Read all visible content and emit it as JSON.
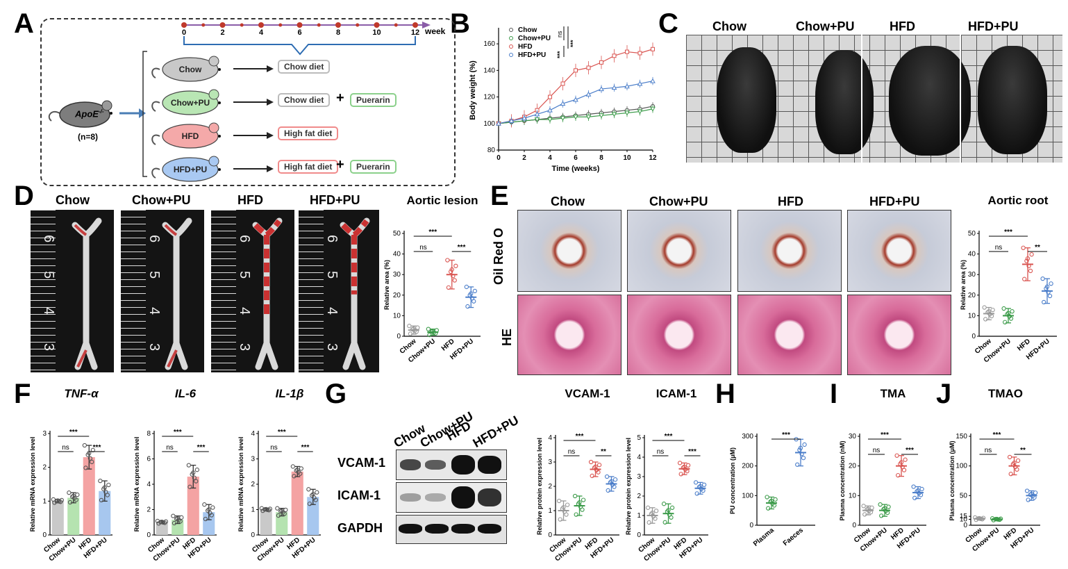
{
  "panels": {
    "A": "A",
    "B": "B",
    "C": "C",
    "D": "D",
    "E": "E",
    "F": "F",
    "G": "G",
    "H": "H",
    "I": "I",
    "J": "J"
  },
  "panel_a": {
    "timeline": {
      "ticks": [
        "0",
        "2",
        "4",
        "6",
        "8",
        "10",
        "12"
      ],
      "unit": "week"
    },
    "source": {
      "label": "ApoE",
      "superscript": "-/-",
      "n": "(n=8)"
    },
    "groups": [
      {
        "name": "Chow",
        "diet": "Chow diet",
        "extra": "",
        "color": "#c8c8c8"
      },
      {
        "name": "Chow+PU",
        "diet": "Chow diet",
        "extra": "Puerarin",
        "color": "#b9e6b4"
      },
      {
        "name": "HFD",
        "diet": "High fat diet",
        "extra": "",
        "color": "#f4a9a9"
      },
      {
        "name": "HFD+PU",
        "diet": "High fat diet",
        "extra": "Puerarin",
        "color": "#a9c9f2"
      }
    ],
    "plus": "+"
  },
  "panel_c": {
    "labels": [
      "Chow",
      "Chow+PU",
      "HFD",
      "HFD+PU"
    ]
  },
  "panel_d": {
    "labels": [
      "Chow",
      "Chow+PU",
      "HFD",
      "HFD+PU"
    ],
    "ruler": [
      "6",
      "5",
      "4",
      "3"
    ]
  },
  "panel_e": {
    "labels": [
      "Chow",
      "Chow+PU",
      "HFD",
      "HFD+PU"
    ],
    "rows": [
      "Oil Red O",
      "HE"
    ]
  },
  "panel_g": {
    "columns": [
      "Chow",
      "Chow+PU",
      "HFD",
      "HFD+PU"
    ],
    "rows": [
      "VCAM-1",
      "ICAM-1",
      "GAPDH"
    ]
  },
  "chart_data": [
    {
      "id": "B",
      "type": "line",
      "title": "",
      "xlabel": "Time (weeks)",
      "ylabel": "Body weight (%)",
      "x": [
        0,
        1,
        2,
        3,
        4,
        5,
        6,
        7,
        8,
        9,
        10,
        11,
        12
      ],
      "xticks": [
        "0",
        "2",
        "4",
        "6",
        "8",
        "10",
        "12"
      ],
      "xlim": [
        0,
        12
      ],
      "ylim": [
        80,
        170
      ],
      "yticks": [
        "80",
        "100",
        "120",
        "140",
        "160"
      ],
      "series": [
        {
          "name": "Chow",
          "marker": "circle",
          "color": "#555555",
          "values": [
            100,
            101,
            102,
            103,
            104,
            105,
            106,
            107,
            108,
            109,
            110,
            111,
            113
          ]
        },
        {
          "name": "Chow+PU",
          "marker": "down",
          "color": "#3a9a48",
          "values": [
            100,
            101,
            102,
            103,
            103,
            104,
            105,
            105,
            106,
            107,
            108,
            109,
            111
          ]
        },
        {
          "name": "HFD",
          "marker": "square",
          "color": "#d9534f",
          "values": [
            100,
            102,
            105,
            110,
            120,
            130,
            140,
            142,
            146,
            151,
            154,
            153,
            156
          ]
        },
        {
          "name": "HFD+PU",
          "marker": "up",
          "color": "#4a7dc9",
          "values": [
            100,
            102,
            104,
            107,
            110,
            115,
            118,
            122,
            126,
            127,
            128,
            130,
            132
          ]
        }
      ],
      "legend": [
        "Chow",
        "Chow+PU",
        "HFD",
        "HFD+PU"
      ],
      "sig": [
        "ns",
        "***",
        "***"
      ]
    },
    {
      "id": "D",
      "type": "scatter",
      "title": "Aortic lesion",
      "ylabel": "Relative area (%)",
      "categories": [
        "Chow",
        "Chow+PU",
        "HFD",
        "HFD+PU"
      ],
      "ylim": [
        0,
        50
      ],
      "yticks": [
        "0",
        "10",
        "20",
        "30",
        "40",
        "50"
      ],
      "means": [
        3,
        2,
        30,
        19
      ],
      "sd": [
        2,
        1.5,
        7,
        5
      ],
      "colors": [
        "#999999",
        "#3a9a48",
        "#d9534f",
        "#4a7dc9"
      ],
      "sig": [
        "***",
        "ns",
        "***"
      ]
    },
    {
      "id": "E",
      "type": "scatter",
      "title": "Aortic root",
      "ylabel": "Relative area (%)",
      "categories": [
        "Chow",
        "Chow+PU",
        "HFD",
        "HFD+PU"
      ],
      "ylim": [
        0,
        50
      ],
      "yticks": [
        "0",
        "10",
        "20",
        "30",
        "40",
        "50"
      ],
      "means": [
        11,
        10,
        35,
        22
      ],
      "sd": [
        3,
        3.5,
        8,
        6
      ],
      "colors": [
        "#999999",
        "#3a9a48",
        "#d9534f",
        "#4a7dc9"
      ],
      "sig": [
        "***",
        "ns",
        "**"
      ]
    },
    {
      "id": "F1",
      "type": "bar",
      "title": "TNF-α",
      "ylabel": "Relative mRNA expression level",
      "categories": [
        "Chow",
        "Chow+PU",
        "HFD",
        "HFD+PU"
      ],
      "ylim": [
        0,
        3
      ],
      "yticks": [
        "0",
        "1",
        "2",
        "3"
      ],
      "values": [
        1.0,
        1.1,
        2.3,
        1.3
      ],
      "sd": [
        0.05,
        0.15,
        0.35,
        0.3
      ],
      "colors": [
        "#c9c9c9",
        "#b5e3b0",
        "#f4a3a3",
        "#a7c7ef"
      ],
      "sig": [
        "***",
        "ns",
        "***"
      ]
    },
    {
      "id": "F2",
      "type": "bar",
      "title": "IL-6",
      "ylabel": "Relative mRNA expression level",
      "categories": [
        "Chow",
        "Chow+PU",
        "HFD",
        "HFD+PU"
      ],
      "ylim": [
        0,
        8
      ],
      "yticks": [
        "0",
        "2",
        "4",
        "6",
        "8"
      ],
      "values": [
        1.0,
        1.2,
        4.6,
        1.8
      ],
      "sd": [
        0.1,
        0.3,
        0.9,
        0.6
      ],
      "colors": [
        "#c9c9c9",
        "#b5e3b0",
        "#f4a3a3",
        "#a7c7ef"
      ],
      "sig": [
        "***",
        "ns",
        "***"
      ]
    },
    {
      "id": "F3",
      "type": "bar",
      "title": "IL-1β",
      "ylabel": "Relative mRNA expression level",
      "categories": [
        "Chow",
        "Chow+PU",
        "HFD",
        "HFD+PU"
      ],
      "ylim": [
        0,
        4
      ],
      "yticks": [
        "0",
        "1",
        "2",
        "3",
        "4"
      ],
      "values": [
        1.0,
        0.9,
        2.5,
        1.5
      ],
      "sd": [
        0.05,
        0.15,
        0.2,
        0.3
      ],
      "colors": [
        "#c9c9c9",
        "#b5e3b0",
        "#f4a3a3",
        "#a7c7ef"
      ],
      "sig": [
        "***",
        "ns",
        "***"
      ]
    },
    {
      "id": "G1",
      "type": "scatter",
      "title": "VCAM-1",
      "ylabel": "Relative protein expression level",
      "categories": [
        "Chow",
        "Chow+PU",
        "HFD",
        "HFD+PU"
      ],
      "ylim": [
        0,
        4
      ],
      "yticks": [
        "0",
        "1",
        "2",
        "3",
        "4"
      ],
      "means": [
        1.0,
        1.2,
        2.7,
        2.1
      ],
      "sd": [
        0.4,
        0.4,
        0.3,
        0.3
      ],
      "colors": [
        "#999999",
        "#3a9a48",
        "#d9534f",
        "#4a7dc9"
      ],
      "sig": [
        "***",
        "ns",
        "**"
      ]
    },
    {
      "id": "G2",
      "type": "scatter",
      "title": "ICAM-1",
      "ylabel": "Relative protein expression level",
      "categories": [
        "Chow",
        "Chow+PU",
        "HFD",
        "HFD+PU"
      ],
      "ylim": [
        0,
        5
      ],
      "yticks": [
        "0",
        "1",
        "2",
        "3",
        "4",
        "5"
      ],
      "means": [
        1.0,
        1.1,
        3.4,
        2.4
      ],
      "sd": [
        0.4,
        0.5,
        0.3,
        0.3
      ],
      "colors": [
        "#999999",
        "#3a9a48",
        "#d9534f",
        "#4a7dc9"
      ],
      "sig": [
        "***",
        "ns",
        "***"
      ]
    },
    {
      "id": "H",
      "type": "scatter",
      "title": "",
      "ylabel": "PU concentration (μM)",
      "categories": [
        "Plasma",
        "Faeces"
      ],
      "ylim": [
        0,
        300
      ],
      "yticks": [
        "0",
        "100",
        "200",
        "300"
      ],
      "means": [
        75,
        245
      ],
      "sd": [
        20,
        45
      ],
      "colors": [
        "#3a9a48",
        "#4a7dc9"
      ],
      "sig": [
        "***"
      ]
    },
    {
      "id": "I",
      "type": "scatter",
      "title": "TMA",
      "ylabel": "Plasma concentration (nM)",
      "categories": [
        "Chow",
        "Chow+PU",
        "HFD",
        "HFD+PU"
      ],
      "ylim": [
        0,
        30
      ],
      "yticks": [
        "0",
        "10",
        "20",
        "30"
      ],
      "means": [
        5,
        5,
        20,
        11
      ],
      "sd": [
        1.5,
        2,
        3.5,
        2
      ],
      "colors": [
        "#999999",
        "#3a9a48",
        "#d9534f",
        "#4a7dc9"
      ],
      "sig": [
        "***",
        "ns",
        "***"
      ]
    },
    {
      "id": "J",
      "type": "scatter",
      "title": "TMAO",
      "ylabel": "Plasma concentration (μM)",
      "categories": [
        "Chow",
        "Chow+PU",
        "HFD",
        "HFD+PU"
      ],
      "ylim": [
        0,
        150
      ],
      "yticks": [
        "0",
        "10",
        "15",
        "50",
        "100",
        "150"
      ],
      "means": [
        11,
        10,
        100,
        50
      ],
      "sd": [
        2,
        1.5,
        15,
        8
      ],
      "colors": [
        "#999999",
        "#3a9a48",
        "#d9534f",
        "#4a7dc9"
      ],
      "sig": [
        "***",
        "ns",
        "**"
      ]
    }
  ]
}
